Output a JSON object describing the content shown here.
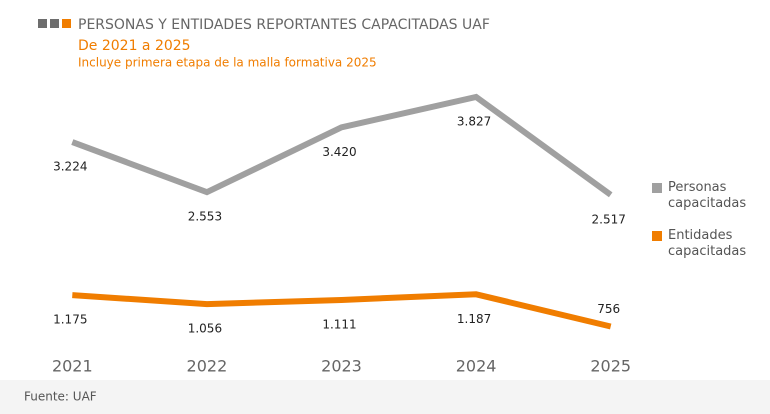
{
  "chart_data": {
    "type": "line",
    "title": "PERSONAS Y ENTIDADES REPORTANTES CAPACITADAS UAF",
    "subtitle": "De 2021 a 2025",
    "note": "Incluye primera etapa de la malla formativa 2025",
    "source": "Fuente: UAF",
    "categories": [
      "2021",
      "2022",
      "2023",
      "2024",
      "2025"
    ],
    "ylim": [
      0,
      4000
    ],
    "series": [
      {
        "name": "Personas capacitadas",
        "color": "#a0a0a0",
        "values": [
          3224,
          2553,
          3420,
          3827,
          2517
        ],
        "value_labels": [
          "3.224",
          "2.553",
          "3.420",
          "3.827",
          "2.517"
        ]
      },
      {
        "name": "Entidades capacitadas",
        "color": "#f07d00",
        "values": [
          1175,
          1056,
          1111,
          1187,
          756
        ],
        "value_labels": [
          "1.175",
          "1.056",
          "1.111",
          "1.187",
          "756"
        ]
      }
    ],
    "legend": "right"
  }
}
